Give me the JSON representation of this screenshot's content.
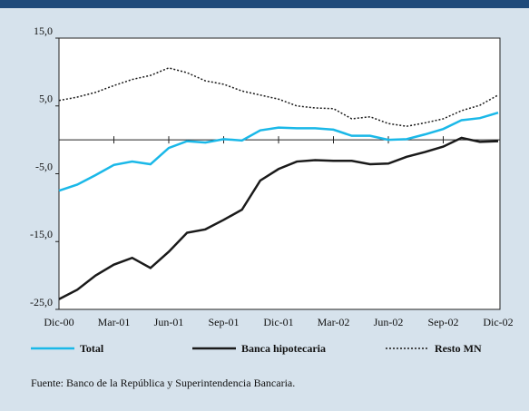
{
  "chart_data": {
    "type": "line",
    "categories": [
      "Dic-00",
      null,
      null,
      "Mar-01",
      null,
      null,
      "Jun-01",
      null,
      null,
      "Sep-01",
      null,
      null,
      "Dic-01",
      null,
      null,
      "Mar-02",
      null,
      null,
      "Jun-02",
      null,
      null,
      "Sep-02",
      null,
      null,
      "Dic-02"
    ],
    "series": [
      {
        "name": "Total",
        "color": "#1ab8e8",
        "style": "solid",
        "values": [
          -7.5,
          -6.6,
          -5.2,
          -3.7,
          -3.2,
          -3.6,
          -1.2,
          -0.2,
          -0.4,
          0.1,
          -0.1,
          1.4,
          1.8,
          1.7,
          1.7,
          1.5,
          0.6,
          0.6,
          0.0,
          0.1,
          0.8,
          1.6,
          2.9,
          3.2,
          4.0
        ]
      },
      {
        "name": "Banca hipotecaria",
        "color": "#1a1a1a",
        "style": "solid",
        "values": [
          -23.5,
          -22.1,
          -20.0,
          -18.4,
          -17.4,
          -18.9,
          -16.5,
          -13.7,
          -13.2,
          -11.8,
          -10.3,
          -6.0,
          -4.3,
          -3.2,
          -3.0,
          -3.1,
          -3.1,
          -3.6,
          -3.5,
          -2.5,
          -1.8,
          -1.0,
          0.3,
          -0.3,
          -0.2
        ]
      },
      {
        "name": "Resto MN",
        "color": "#1a1a1a",
        "style": "dotted",
        "values": [
          5.8,
          6.3,
          7.0,
          8.0,
          8.9,
          9.5,
          10.6,
          9.9,
          8.7,
          8.2,
          7.2,
          6.6,
          6.0,
          5.0,
          4.7,
          4.6,
          3.1,
          3.4,
          2.4,
          2.0,
          2.5,
          3.1,
          4.3,
          5.1,
          6.6
        ]
      }
    ],
    "ylim": [
      -25,
      15
    ],
    "yticks": [
      {
        "value": -25,
        "label": "-25,0"
      },
      {
        "value": -15,
        "label": "-15,0"
      },
      {
        "value": -5,
        "label": "-5,0"
      },
      {
        "value": 5,
        "label": "5,0"
      },
      {
        "value": 15,
        "label": "15,0"
      }
    ],
    "grid": false,
    "source": "Fuente: Banco de la República y Superintendencia Bancaria."
  }
}
